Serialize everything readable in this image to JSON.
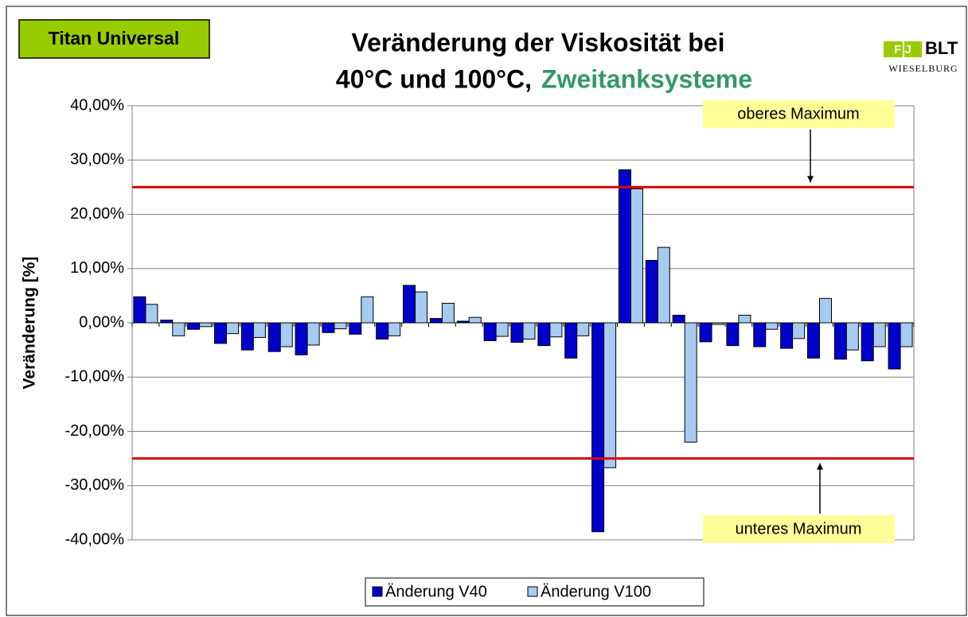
{
  "chart_data": {
    "type": "bar",
    "title": "Veränderung der Viskosität bei",
    "subtitle": "40°C und 100°C,",
    "subtitle_highlight": "Zweitanksysteme",
    "badge": "Titan Universal",
    "logo": {
      "mark": "F J",
      "name": "BLT",
      "place": "WIESELBURG"
    },
    "y_label": "Veränderung [%]",
    "categories": [
      null,
      null,
      null,
      null,
      null,
      null,
      null,
      null,
      null,
      null,
      null,
      null,
      null,
      null,
      null,
      null,
      null,
      null,
      null,
      null,
      null,
      null,
      null,
      null,
      null,
      null,
      null,
      null,
      null
    ],
    "series": [
      {
        "name": "Änderung V40",
        "color": "#0000cc",
        "values": [
          4.8,
          0.5,
          -1.2,
          -3.8,
          -5.0,
          -5.3,
          -5.9,
          -1.8,
          -2.1,
          -3.0,
          6.9,
          0.8,
          0.3,
          -3.3,
          -3.6,
          -4.2,
          -6.5,
          -38.5,
          28.2,
          11.5,
          1.4,
          -3.5,
          -4.2,
          -4.4,
          -4.7,
          -6.5,
          -6.7,
          -7.0,
          -8.5
        ]
      },
      {
        "name": "Änderung V100",
        "color": "#a6caf0",
        "values": [
          3.4,
          -2.4,
          -0.7,
          -2.0,
          -2.7,
          -4.4,
          -4.1,
          -1.1,
          4.8,
          -2.4,
          5.7,
          3.6,
          1.0,
          -2.5,
          -3.0,
          -2.6,
          -2.4,
          -26.7,
          24.7,
          13.9,
          -22.0,
          -0.3,
          1.4,
          -1.2,
          -2.9,
          4.5,
          -5.0,
          -4.4,
          -4.4
        ]
      }
    ],
    "ylim": [
      -40,
      40
    ],
    "yticks": [
      {
        "value": -40,
        "label": "-40,00%"
      },
      {
        "value": -30,
        "label": "-30,00%"
      },
      {
        "value": -20,
        "label": "-20,00%"
      },
      {
        "value": -10,
        "label": "-10,00%"
      },
      {
        "value": 0,
        "label": "0,00%"
      },
      {
        "value": 10,
        "label": "10,00%"
      },
      {
        "value": 20,
        "label": "20,00%"
      },
      {
        "value": 30,
        "label": "30,00%"
      },
      {
        "value": 40,
        "label": "40,00%"
      }
    ],
    "grid": true,
    "reference_color": "#e00000",
    "reference_lines": [
      {
        "value": 25,
        "label": "oberes Maximum"
      },
      {
        "value": -25,
        "label": "unteres Maximum"
      }
    ],
    "legend": "bottom"
  }
}
